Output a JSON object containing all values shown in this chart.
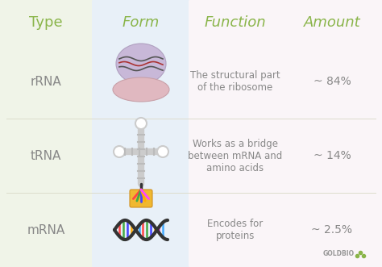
{
  "bg_color": "#f5f5f0",
  "col1_bg": "#f0f4e8",
  "col2_bg": "#e8f0f8",
  "col3_bg": "#faf5f5",
  "col4_bg": "#faf5f5",
  "header_color": "#8ab54a",
  "text_color": "#888888",
  "title_row": [
    "Type",
    "Form",
    "Function",
    "Amount"
  ],
  "types": [
    "rRNA",
    "tRNA",
    "mRNA"
  ],
  "functions": [
    "The structural part\nof the ribosome",
    "Works as a bridge\nbetween mRNA and\namino acids",
    "Encodes for\nproteins"
  ],
  "amounts": [
    "~ 84%",
    "~ 14%",
    "~ 2.5%"
  ],
  "divider_color": "#ddddcc",
  "goldbio_color": "#aaaaaa",
  "font_size_header": 13,
  "font_size_type": 11,
  "font_size_func": 8.5,
  "font_size_amount": 10
}
